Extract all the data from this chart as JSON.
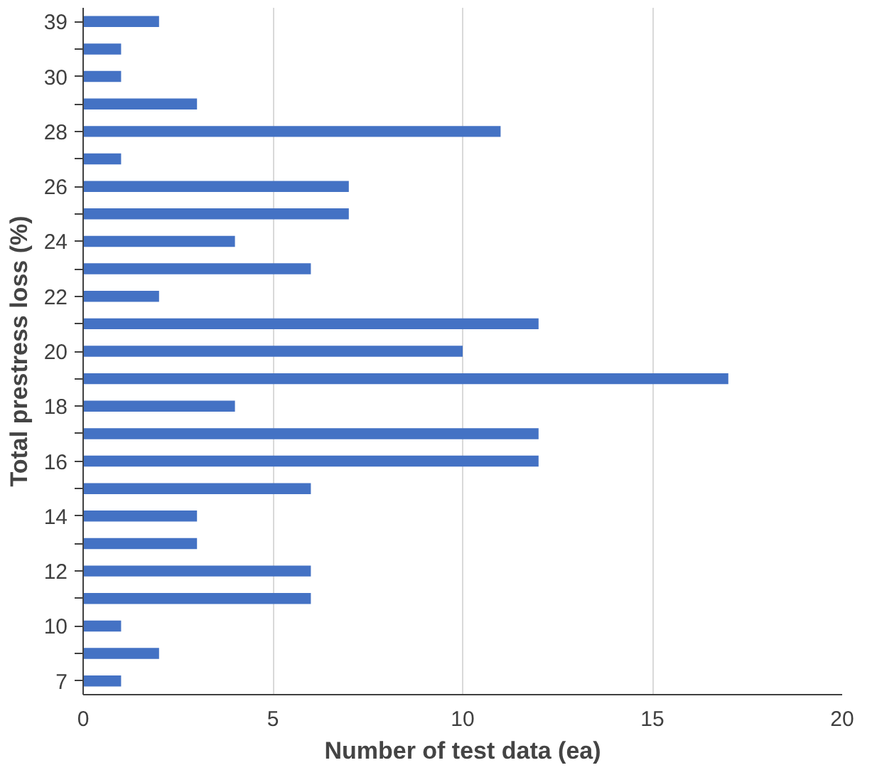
{
  "chart_data": {
    "type": "bar",
    "orientation": "horizontal",
    "xlabel": "Number of test data (ea)",
    "ylabel": "Total prestress loss (%)",
    "categories": [
      "39",
      null,
      "30",
      null,
      "28",
      null,
      "26",
      null,
      "24",
      null,
      "22",
      null,
      "20",
      null,
      "18",
      null,
      "16",
      null,
      "14",
      null,
      "12",
      null,
      "10",
      null,
      "7"
    ],
    "series": [
      {
        "color": "#4472c4",
        "values": [
          2,
          1,
          1,
          3,
          11,
          1,
          7,
          7,
          4,
          6,
          2,
          12,
          10,
          17,
          4,
          12,
          12,
          6,
          3,
          3,
          6,
          6,
          1,
          2,
          1
        ]
      }
    ],
    "xlim": [
      0,
      20
    ],
    "xticks": [
      0,
      5,
      10,
      15,
      20
    ],
    "grid": "x"
  }
}
